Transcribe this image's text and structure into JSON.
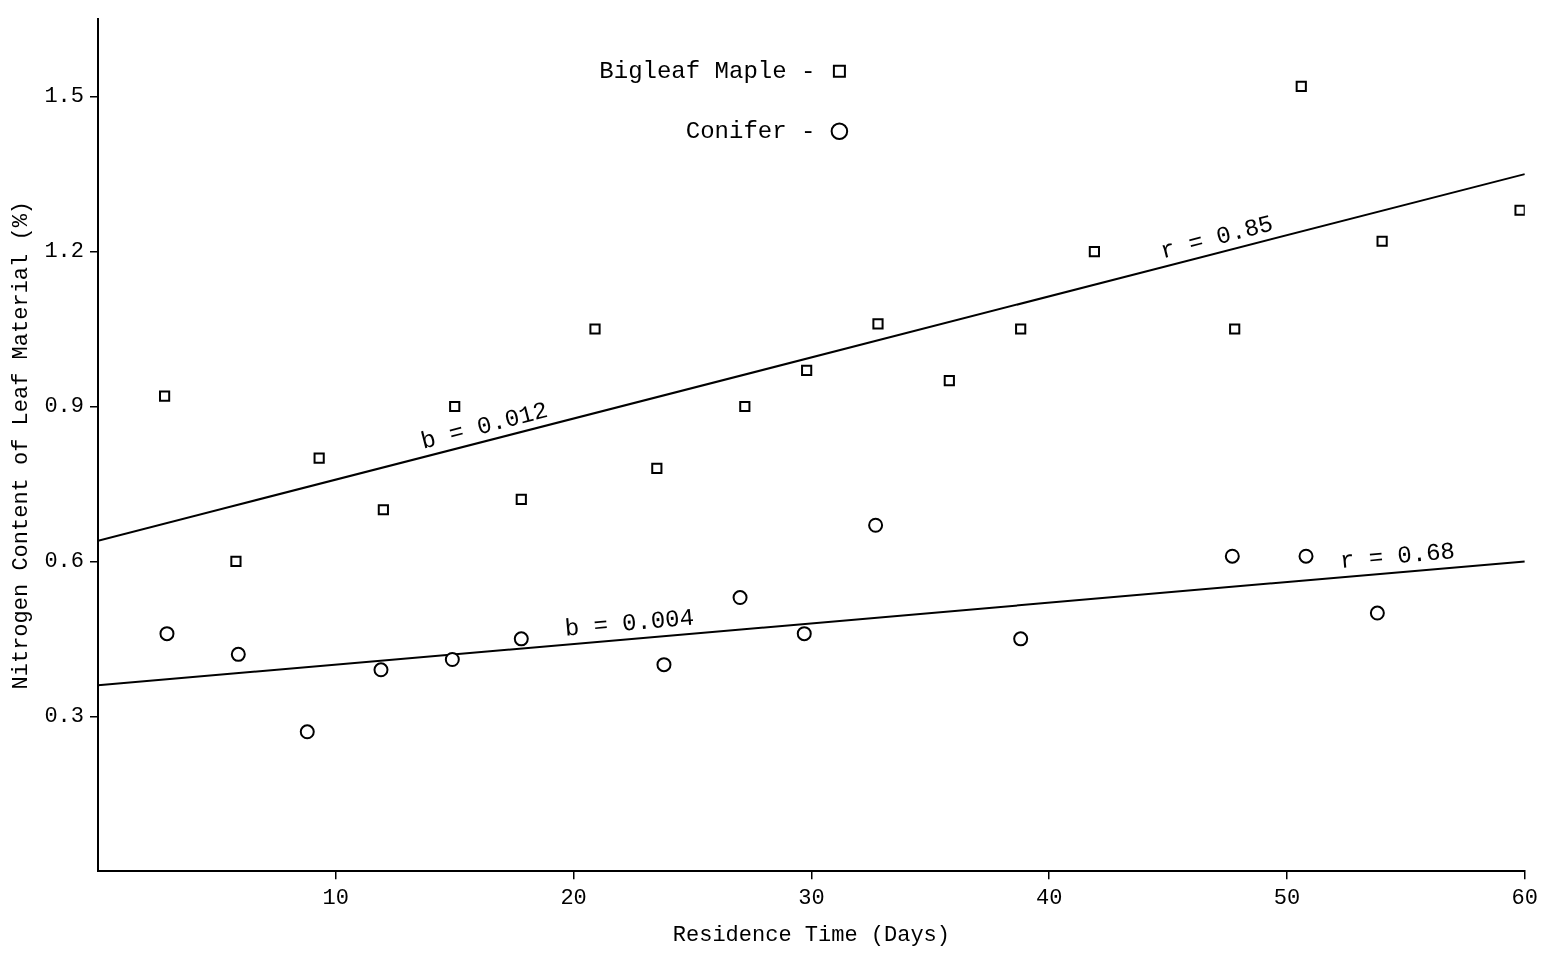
{
  "chart_data": {
    "type": "scatter",
    "xlabel": "Residence Time (Days)",
    "ylabel": "Nitrogen Content of Leaf Material (%)",
    "xlim": [
      0,
      60
    ],
    "xticks": [
      10,
      20,
      30,
      40,
      50,
      60
    ],
    "ylim": [
      0,
      1.65
    ],
    "yticks": [
      {
        "value": 0.3,
        "label": "0.3"
      },
      {
        "value": 0.6,
        "label": "0.6"
      },
      {
        "value": 0.9,
        "label": "0.9"
      },
      {
        "value": 1.2,
        "label": "1.2"
      },
      {
        "value": 1.5,
        "label": "1.5"
      }
    ],
    "grid": false,
    "legend": "top",
    "series": [
      {
        "name": "Bigleaf Maple -",
        "color": "#000000",
        "marker": "square",
        "x": [
          2.8,
          5.8,
          9.3,
          12.0,
          15.0,
          17.8,
          20.9,
          23.5,
          27.2,
          29.8,
          32.8,
          35.8,
          38.8,
          41.9,
          47.8,
          50.6,
          54.0,
          59.8
        ],
        "values": [
          0.92,
          0.6,
          0.8,
          0.7,
          0.9,
          0.72,
          1.05,
          0.78,
          0.9,
          0.97,
          1.06,
          0.95,
          1.05,
          1.2,
          1.05,
          1.52,
          1.22,
          1.28
        ]
      },
      {
        "name": "Conifer -",
        "color": "#000000",
        "marker": "circle",
        "x": [
          2.9,
          5.9,
          8.8,
          11.9,
          14.9,
          17.8,
          23.8,
          27.0,
          29.7,
          32.7,
          38.8,
          47.7,
          50.8,
          53.8
        ],
        "values": [
          0.46,
          0.42,
          0.27,
          0.39,
          0.41,
          0.45,
          0.4,
          0.53,
          0.46,
          0.67,
          0.45,
          0.61,
          0.61,
          0.5
        ]
      },
      {
        "type": "line",
        "color": "#000000",
        "marker": "none",
        "x": [
          0,
          60
        ],
        "values": [
          0.64,
          1.35
        ]
      },
      {
        "type": "line",
        "color": "#000000",
        "marker": "none",
        "x": [
          0,
          60
        ],
        "values": [
          0.36,
          0.6
        ]
      }
    ],
    "annotations": [
      {
        "text": "b = 0.012",
        "x": 16.4,
        "y": 0.835
      },
      {
        "text": "r = 0.85",
        "x": 47.2,
        "y": 1.2
      },
      {
        "text": "b = 0.004",
        "x": 22.4,
        "y": 0.452
      },
      {
        "text": "r = 0.68",
        "x": 54.7,
        "y": 0.582
      }
    ]
  }
}
